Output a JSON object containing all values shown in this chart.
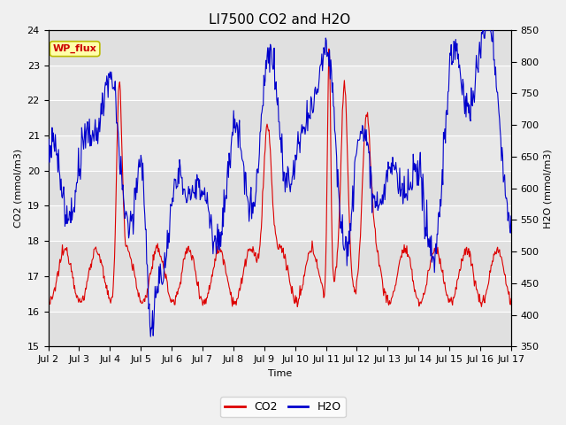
{
  "title": "LI7500 CO2 and H2O",
  "xlabel": "Time",
  "ylabel_left": "CO2 (mmol/m3)",
  "ylabel_right": "H2O (mmol/m3)",
  "ylim_left": [
    15.0,
    24.0
  ],
  "ylim_right": [
    350,
    850
  ],
  "yticks_left": [
    15.0,
    16.0,
    17.0,
    18.0,
    19.0,
    20.0,
    21.0,
    22.0,
    23.0,
    24.0
  ],
  "yticks_right": [
    350,
    400,
    450,
    500,
    550,
    600,
    650,
    700,
    750,
    800,
    850
  ],
  "xtick_labels": [
    "Jul 2",
    "Jul 3",
    "Jul 4",
    "Jul 5",
    "Jul 6",
    "Jul 7",
    "Jul 8",
    "Jul 9",
    "Jul 10",
    "Jul 11",
    "Jul 12",
    "Jul 13",
    "Jul 14",
    "Jul 15",
    "Jul 16",
    "Jul 17"
  ],
  "co2_color": "#DD0000",
  "h2o_color": "#0000CC",
  "legend_label_co2": "CO2",
  "legend_label_h2o": "H2O",
  "annotation_text": "WP_flux",
  "annotation_bgcolor": "#FFFFAA",
  "annotation_edgecolor": "#BBBB00",
  "annotation_textcolor": "#CC0000",
  "plot_bgcolor": "#E8E8E8",
  "fig_bgcolor": "#F0F0F0",
  "grid_color": "#FFFFFF",
  "title_fontsize": 11,
  "axis_label_fontsize": 8,
  "tick_fontsize": 8,
  "legend_fontsize": 9
}
